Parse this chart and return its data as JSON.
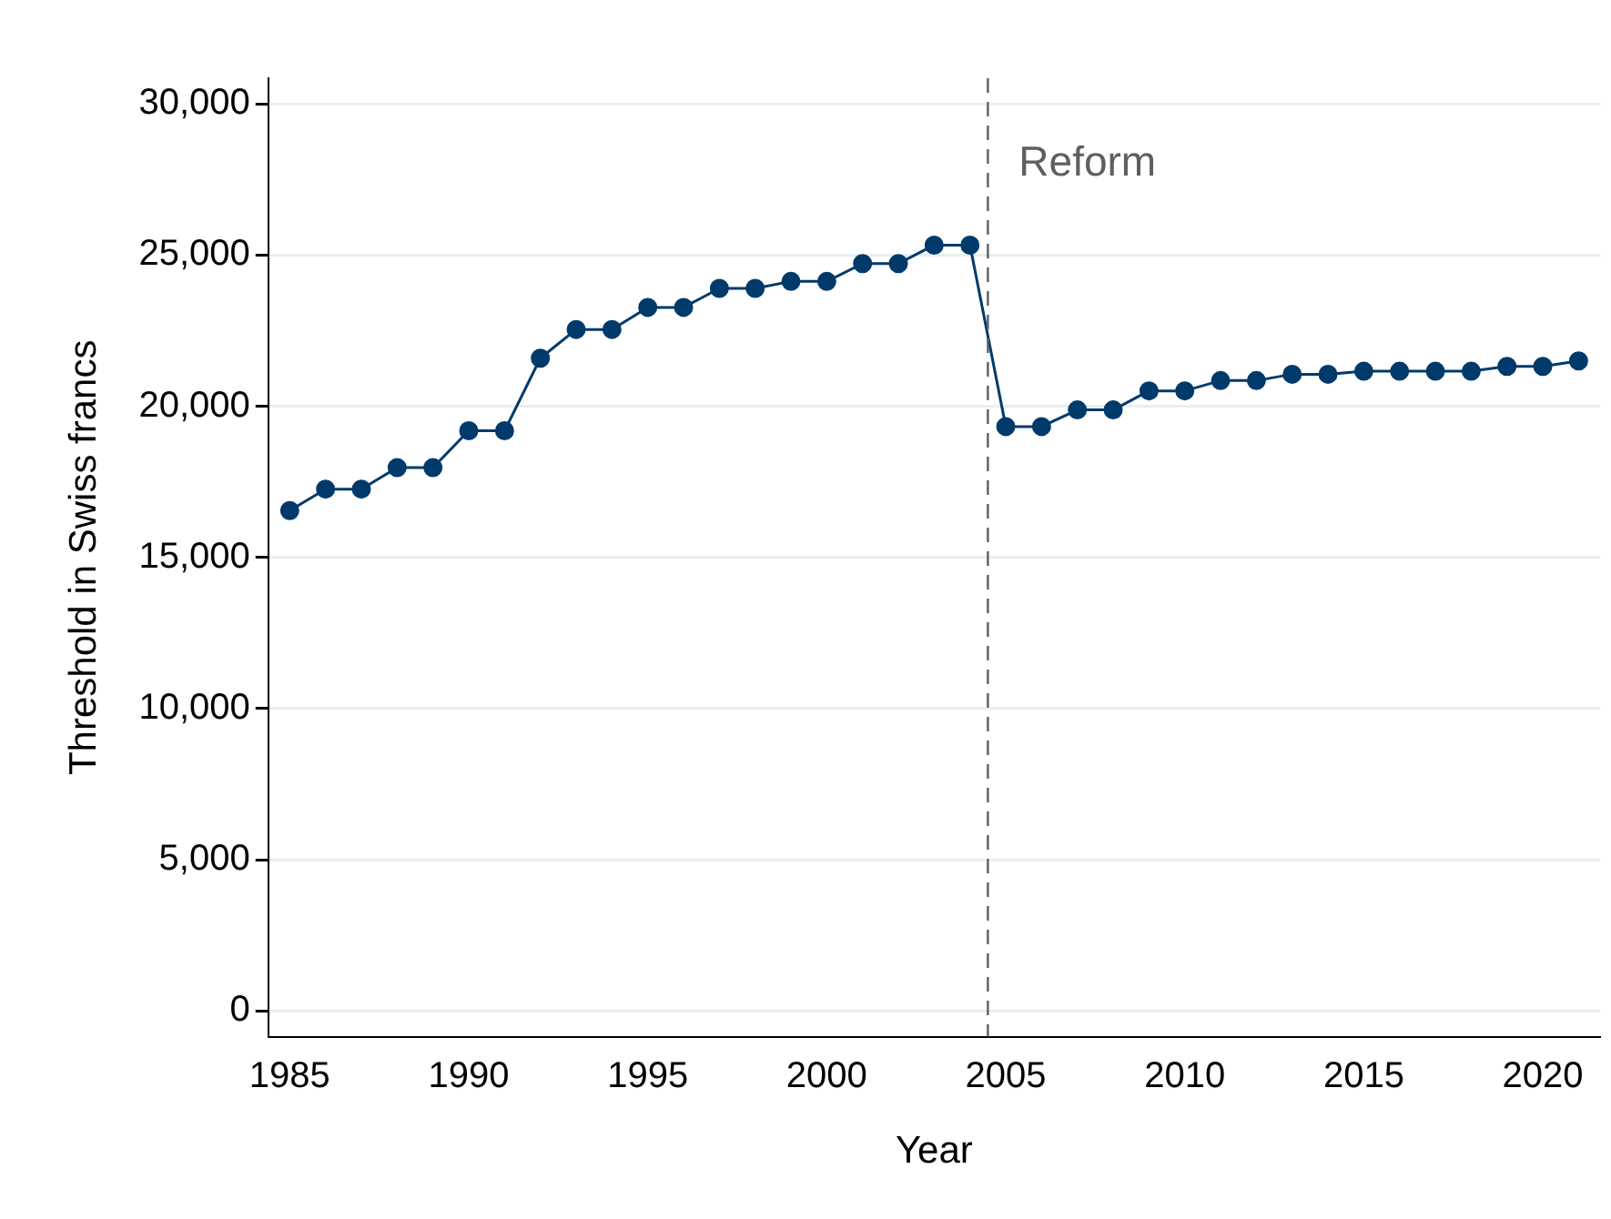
{
  "chart_data": {
    "type": "line",
    "xlabel": "Year",
    "ylabel": "Threshold in Swiss francs",
    "x": [
      1985,
      1986,
      1987,
      1988,
      1989,
      1990,
      1991,
      1992,
      1993,
      1994,
      1995,
      1996,
      1997,
      1998,
      1999,
      2000,
      2001,
      2002,
      2003,
      2004,
      2005,
      2006,
      2007,
      2008,
      2009,
      2010,
      2011,
      2012,
      2013,
      2014,
      2015,
      2016,
      2017,
      2018,
      2019,
      2020,
      2021
    ],
    "series": [
      {
        "color": "#003a6b",
        "values": [
          16550,
          17260,
          17260,
          17970,
          17970,
          19190,
          19190,
          21590,
          22540,
          22540,
          23270,
          23270,
          23900,
          23900,
          24130,
          24130,
          24720,
          24720,
          25330,
          25330,
          19330,
          19330,
          19880,
          19880,
          20510,
          20510,
          20850,
          20850,
          21060,
          21060,
          21160,
          21160,
          21160,
          21160,
          21320,
          21320,
          21500
        ]
      }
    ],
    "xlim": [
      1984.4,
      2021.6
    ],
    "xticks": [
      1985,
      1990,
      1995,
      2000,
      2005,
      2010,
      2015,
      2020
    ],
    "ylim": [
      -850,
      30850
    ],
    "yticks": [
      {
        "value": 0,
        "label": "0"
      },
      {
        "value": 5000,
        "label": "5,000"
      },
      {
        "value": 10000,
        "label": "10,000"
      },
      {
        "value": 15000,
        "label": "15,000"
      },
      {
        "value": 20000,
        "label": "20,000"
      },
      {
        "value": 25000,
        "label": "25,000"
      },
      {
        "value": 30000,
        "label": "30,000"
      }
    ],
    "grid": "y",
    "legend": false,
    "marker": "circle",
    "line_style": "solid",
    "ref_lines": [
      {
        "axis": "x",
        "value": 2004.5,
        "label": "Reform",
        "color": "#5f5f5f",
        "line_style": "dashed"
      }
    ]
  }
}
